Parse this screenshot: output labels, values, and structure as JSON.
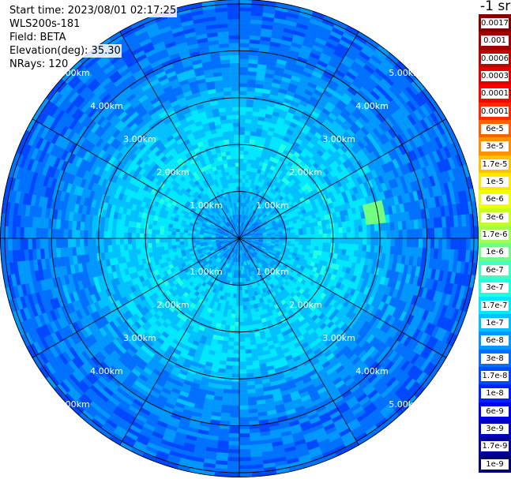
{
  "header": {
    "start_time": "Start time: 2023/08/01 02:17:25",
    "instrument": "WLS200s-181",
    "field": "Field: BETA",
    "elevation": "Elevation(deg): 35.30",
    "nrays": "NRays: 120"
  },
  "colorbar": {
    "unit_label": "-1 sr",
    "tick_labels": [
      "0.0017",
      "0.001",
      "0.0006",
      "0.0003",
      "0.00017",
      "0.0001",
      "6e-5",
      "3e-5",
      "1.7e-5",
      "1e-5",
      "6e-6",
      "3e-6",
      "1.7e-6",
      "1e-6",
      "6e-7",
      "3e-7",
      "1.7e-7",
      "1e-7",
      "6e-8",
      "3e-8",
      "1.7e-8",
      "1e-8",
      "6e-9",
      "3e-9",
      "1.7e-9",
      "1e-9"
    ],
    "colors": [
      "#800000",
      "#a00000",
      "#c00000",
      "#e00000",
      "#ff0000",
      "#ff2800",
      "#ff6000",
      "#ff9000",
      "#ffc000",
      "#ffe800",
      "#f0ff00",
      "#c8ff20",
      "#a0ff50",
      "#70ff80",
      "#40ffc0",
      "#20ffe0",
      "#00e8ff",
      "#00c0ff",
      "#0098ff",
      "#0070ff",
      "#0048ff",
      "#0020ff",
      "#0000e8",
      "#0000c0",
      "#000098",
      "#000070"
    ]
  },
  "chart_data": {
    "type": "heatmap",
    "projection": "polar",
    "field": "BETA",
    "units": "sr-1",
    "elevation_deg": 35.3,
    "n_rays": 120,
    "range_rings": [
      {
        "range_km": 1.0,
        "label": "1.00km"
      },
      {
        "range_km": 2.0,
        "label": "2.00km"
      },
      {
        "range_km": 3.0,
        "label": "3.00km"
      },
      {
        "range_km": 4.0,
        "label": "4.00km"
      },
      {
        "range_km": 5.0,
        "label": "5.00km"
      }
    ],
    "max_range_km": 5.1,
    "radial_lines": 12,
    "value_bands_by_range": [
      {
        "range_km": [
          0.0,
          1.0
        ],
        "typical_value": "3e-8 to 1e-7"
      },
      {
        "range_km": [
          1.0,
          2.0
        ],
        "typical_value": "1e-7 to 1.7e-7"
      },
      {
        "range_km": [
          2.0,
          3.0
        ],
        "typical_value": "6e-8 to 1.7e-7"
      },
      {
        "range_km": [
          3.0,
          4.0
        ],
        "typical_value": "3e-8 to 6e-8"
      },
      {
        "range_km": [
          4.0,
          5.1
        ],
        "typical_value": "1.7e-8 to 6e-8"
      }
    ],
    "features": [
      {
        "azimuth_deg": 80,
        "range_km": 2.9,
        "value": "1e-6",
        "note": "yellow-green patch east"
      }
    ]
  }
}
